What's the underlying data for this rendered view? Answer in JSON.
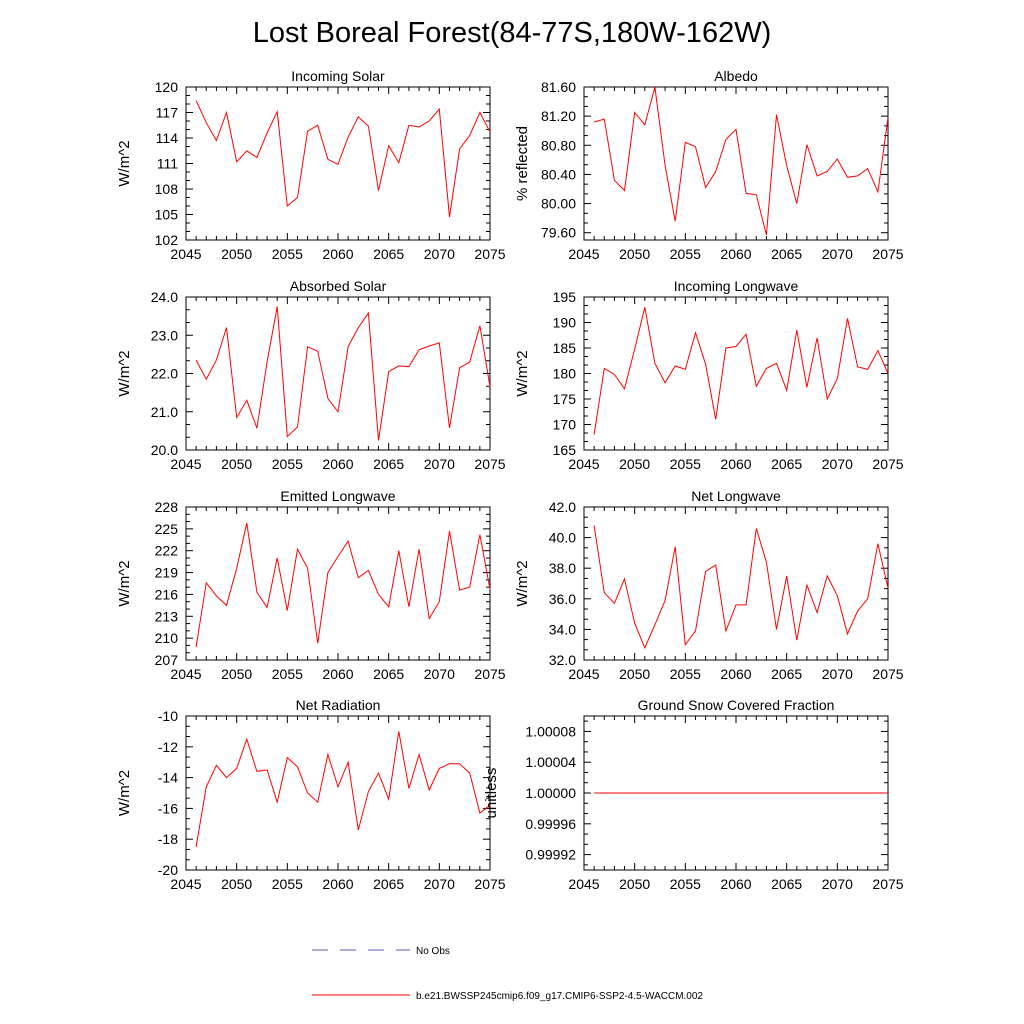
{
  "figure": {
    "title": "Lost Boreal Forest(84-77S,180W-162W)"
  },
  "legend": {
    "entries": [
      {
        "label": "No Obs",
        "color": "#5a5ab0",
        "dash": "dashed"
      },
      {
        "label": "b.e21.BWSSP245cmip6.f09_g17.CMIP6-SSP2-4.5-WACCM.002",
        "color": "#ff0000",
        "dash": "solid"
      }
    ]
  },
  "chart_data": [
    {
      "type": "line",
      "title": "Incoming Solar",
      "ylabel": "W/m^2",
      "xlim": [
        2045,
        2075
      ],
      "ylim": [
        102,
        120
      ],
      "yticks": [
        102,
        105,
        108,
        111,
        114,
        117,
        120
      ],
      "ytick_labels": [
        "102",
        "105",
        "108",
        "111",
        "114",
        "117",
        "120"
      ],
      "xticks": [
        2045,
        2050,
        2055,
        2060,
        2065,
        2070,
        2075
      ],
      "xtick_labels": [
        "2045",
        "2050",
        "2055",
        "2060",
        "2065",
        "2070",
        "2075"
      ],
      "x": [
        2046,
        2047,
        2048,
        2049,
        2050,
        2051,
        2052,
        2053,
        2054,
        2055,
        2056,
        2057,
        2058,
        2059,
        2060,
        2061,
        2062,
        2063,
        2064,
        2065,
        2066,
        2067,
        2068,
        2069,
        2070,
        2071,
        2072,
        2073,
        2074,
        2075
      ],
      "series": [
        {
          "values": [
            118.4,
            115.8,
            113.7,
            117.0,
            111.2,
            112.5,
            111.7,
            114.6,
            117.1,
            106.0,
            107.0,
            114.8,
            115.5,
            111.5,
            110.9,
            114.1,
            116.5,
            115.4,
            107.8,
            113.1,
            111.1,
            115.5,
            115.3,
            116.0,
            117.4,
            104.7,
            112.7,
            114.3,
            117.0,
            114.7
          ]
        }
      ]
    },
    {
      "type": "line",
      "title": "Albedo",
      "ylabel": "% reflected",
      "xlim": [
        2045,
        2075
      ],
      "ylim": [
        79.5,
        81.6
      ],
      "yticks": [
        79.6,
        80.0,
        80.4,
        80.8,
        81.2,
        81.6
      ],
      "ytick_labels": [
        "79.60",
        "80.00",
        "80.40",
        "80.80",
        "81.20",
        "81.60"
      ],
      "xticks": [
        2045,
        2050,
        2055,
        2060,
        2065,
        2070,
        2075
      ],
      "xtick_labels": [
        "2045",
        "2050",
        "2055",
        "2060",
        "2065",
        "2070",
        "2075"
      ],
      "x": [
        2046,
        2047,
        2048,
        2049,
        2050,
        2051,
        2052,
        2053,
        2054,
        2055,
        2056,
        2057,
        2058,
        2059,
        2060,
        2061,
        2062,
        2063,
        2064,
        2065,
        2066,
        2067,
        2068,
        2069,
        2070,
        2071,
        2072,
        2073,
        2074,
        2075
      ],
      "series": [
        {
          "values": [
            81.12,
            81.16,
            80.32,
            80.18,
            81.25,
            81.08,
            81.6,
            80.52,
            79.76,
            80.84,
            80.78,
            80.22,
            80.44,
            80.88,
            81.02,
            80.14,
            80.12,
            79.57,
            81.22,
            80.52,
            80.0,
            80.81,
            80.38,
            80.44,
            80.61,
            80.36,
            80.38,
            80.48,
            80.16,
            81.18
          ]
        }
      ]
    },
    {
      "type": "line",
      "title": "Absorbed Solar",
      "ylabel": "W/m^2",
      "xlim": [
        2045,
        2075
      ],
      "ylim": [
        20,
        24
      ],
      "yticks": [
        20,
        21,
        22,
        23,
        24
      ],
      "ytick_labels": [
        "20.0",
        "21.0",
        "22.0",
        "23.0",
        "24.0"
      ],
      "xticks": [
        2045,
        2050,
        2055,
        2060,
        2065,
        2070,
        2075
      ],
      "xtick_labels": [
        "2045",
        "2050",
        "2055",
        "2060",
        "2065",
        "2070",
        "2075"
      ],
      "x": [
        2046,
        2047,
        2048,
        2049,
        2050,
        2051,
        2052,
        2053,
        2054,
        2055,
        2056,
        2057,
        2058,
        2059,
        2060,
        2061,
        2062,
        2063,
        2064,
        2065,
        2066,
        2067,
        2068,
        2069,
        2070,
        2071,
        2072,
        2073,
        2074,
        2075
      ],
      "series": [
        {
          "values": [
            22.35,
            21.85,
            22.35,
            23.2,
            20.85,
            21.3,
            20.57,
            22.3,
            23.75,
            20.35,
            20.6,
            22.7,
            22.58,
            21.35,
            21.0,
            22.7,
            23.2,
            23.58,
            20.25,
            22.05,
            22.2,
            22.18,
            22.62,
            22.72,
            22.8,
            20.58,
            22.15,
            22.3,
            23.25,
            21.65
          ]
        }
      ]
    },
    {
      "type": "line",
      "title": "Incoming Longwave",
      "ylabel": "W/m^2",
      "xlim": [
        2045,
        2075
      ],
      "ylim": [
        165,
        195
      ],
      "yticks": [
        165,
        170,
        175,
        180,
        185,
        190,
        195
      ],
      "ytick_labels": [
        "165",
        "170",
        "175",
        "180",
        "185",
        "190",
        "195"
      ],
      "xticks": [
        2045,
        2050,
        2055,
        2060,
        2065,
        2070,
        2075
      ],
      "xtick_labels": [
        "2045",
        "2050",
        "2055",
        "2060",
        "2065",
        "2070",
        "2075"
      ],
      "x": [
        2046,
        2047,
        2048,
        2049,
        2050,
        2051,
        2052,
        2053,
        2054,
        2055,
        2056,
        2057,
        2058,
        2059,
        2060,
        2061,
        2062,
        2063,
        2064,
        2065,
        2066,
        2067,
        2068,
        2069,
        2070,
        2071,
        2072,
        2073,
        2074,
        2075
      ],
      "series": [
        {
          "values": [
            168.0,
            181.0,
            179.8,
            177.0,
            184.8,
            193.0,
            182.0,
            178.2,
            181.5,
            180.8,
            188.0,
            181.8,
            171.0,
            185.0,
            185.3,
            187.7,
            177.5,
            181.0,
            182.0,
            176.7,
            188.5,
            177.3,
            187.0,
            175.0,
            179.0,
            190.8,
            181.3,
            180.8,
            184.5,
            180.0
          ]
        }
      ]
    },
    {
      "type": "line",
      "title": "Emitted Longwave",
      "ylabel": "W/m^2",
      "xlim": [
        2045,
        2075
      ],
      "ylim": [
        207,
        228
      ],
      "yticks": [
        207,
        210,
        213,
        216,
        219,
        222,
        225,
        228
      ],
      "ytick_labels": [
        "207",
        "210",
        "213",
        "216",
        "219",
        "222",
        "225",
        "228"
      ],
      "xticks": [
        2045,
        2050,
        2055,
        2060,
        2065,
        2070,
        2075
      ],
      "xtick_labels": [
        "2045",
        "2050",
        "2055",
        "2060",
        "2065",
        "2070",
        "2075"
      ],
      "x": [
        2046,
        2047,
        2048,
        2049,
        2050,
        2051,
        2052,
        2053,
        2054,
        2055,
        2056,
        2057,
        2058,
        2059,
        2060,
        2061,
        2062,
        2063,
        2064,
        2065,
        2066,
        2067,
        2068,
        2069,
        2070,
        2071,
        2072,
        2073,
        2074,
        2075
      ],
      "series": [
        {
          "values": [
            208.8,
            217.6,
            215.8,
            214.5,
            219.6,
            225.8,
            216.3,
            214.2,
            221.0,
            213.8,
            222.2,
            219.6,
            209.3,
            219.0,
            221.2,
            223.3,
            218.3,
            219.3,
            216.0,
            214.3,
            222.0,
            214.3,
            222.2,
            212.7,
            215.0,
            224.7,
            216.6,
            217.0,
            224.2,
            216.7
          ]
        }
      ]
    },
    {
      "type": "line",
      "title": "Net Longwave",
      "ylabel": "W/m^2",
      "xlim": [
        2045,
        2075
      ],
      "ylim": [
        32,
        42
      ],
      "yticks": [
        32,
        34,
        36,
        38,
        40,
        42
      ],
      "ytick_labels": [
        "32.0",
        "34.0",
        "36.0",
        "38.0",
        "40.0",
        "42.0"
      ],
      "xticks": [
        2045,
        2050,
        2055,
        2060,
        2065,
        2070,
        2075
      ],
      "xtick_labels": [
        "2045",
        "2050",
        "2055",
        "2060",
        "2065",
        "2070",
        "2075"
      ],
      "x": [
        2046,
        2047,
        2048,
        2049,
        2050,
        2051,
        2052,
        2053,
        2054,
        2055,
        2056,
        2057,
        2058,
        2059,
        2060,
        2061,
        2062,
        2063,
        2064,
        2065,
        2066,
        2067,
        2068,
        2069,
        2070,
        2071,
        2072,
        2073,
        2074,
        2075
      ],
      "series": [
        {
          "values": [
            40.8,
            36.4,
            35.7,
            37.3,
            34.4,
            32.8,
            34.3,
            35.9,
            39.4,
            33.0,
            33.9,
            37.8,
            38.2,
            33.9,
            35.6,
            35.6,
            40.6,
            38.4,
            34.0,
            37.5,
            33.3,
            36.9,
            35.1,
            37.5,
            36.2,
            33.7,
            35.2,
            36.0,
            39.6,
            36.7
          ]
        }
      ]
    },
    {
      "type": "line",
      "title": "Net Radiation",
      "ylabel": "W/m^2",
      "xlim": [
        2045,
        2075
      ],
      "ylim": [
        -20,
        -10
      ],
      "yticks": [
        -20,
        -18,
        -16,
        -14,
        -12,
        -10
      ],
      "ytick_labels": [
        "-20",
        "-18",
        "-16",
        "-14",
        "-12",
        "-10"
      ],
      "xticks": [
        2045,
        2050,
        2055,
        2060,
        2065,
        2070,
        2075
      ],
      "xtick_labels": [
        "2045",
        "2050",
        "2055",
        "2060",
        "2065",
        "2070",
        "2075"
      ],
      "x": [
        2046,
        2047,
        2048,
        2049,
        2050,
        2051,
        2052,
        2053,
        2054,
        2055,
        2056,
        2057,
        2058,
        2059,
        2060,
        2061,
        2062,
        2063,
        2064,
        2065,
        2066,
        2067,
        2068,
        2069,
        2070,
        2071,
        2072,
        2073,
        2074,
        2075
      ],
      "series": [
        {
          "values": [
            -18.5,
            -14.6,
            -13.2,
            -14.0,
            -13.4,
            -11.5,
            -13.6,
            -13.5,
            -15.6,
            -12.7,
            -13.3,
            -15.0,
            -15.6,
            -12.5,
            -14.6,
            -13.0,
            -17.4,
            -14.9,
            -13.7,
            -15.4,
            -11.0,
            -14.7,
            -12.5,
            -14.8,
            -13.4,
            -13.1,
            -13.1,
            -13.7,
            -16.3,
            -15.8
          ]
        }
      ]
    },
    {
      "type": "line",
      "title": "Ground Snow Covered Fraction",
      "ylabel": "unitless",
      "xlim": [
        2045,
        2075
      ],
      "ylim": [
        0.9999,
        1.0001
      ],
      "yticks": [
        0.99992,
        0.99996,
        1.0,
        1.00004,
        1.00008
      ],
      "ytick_labels": [
        "0.99992",
        "0.99996",
        "1.00000",
        "1.00004",
        "1.00008"
      ],
      "xticks": [
        2045,
        2050,
        2055,
        2060,
        2065,
        2070,
        2075
      ],
      "xtick_labels": [
        "2045",
        "2050",
        "2055",
        "2060",
        "2065",
        "2070",
        "2075"
      ],
      "x": [
        2046,
        2075
      ],
      "series": [
        {
          "values": [
            1.0,
            1.0
          ]
        }
      ]
    }
  ]
}
